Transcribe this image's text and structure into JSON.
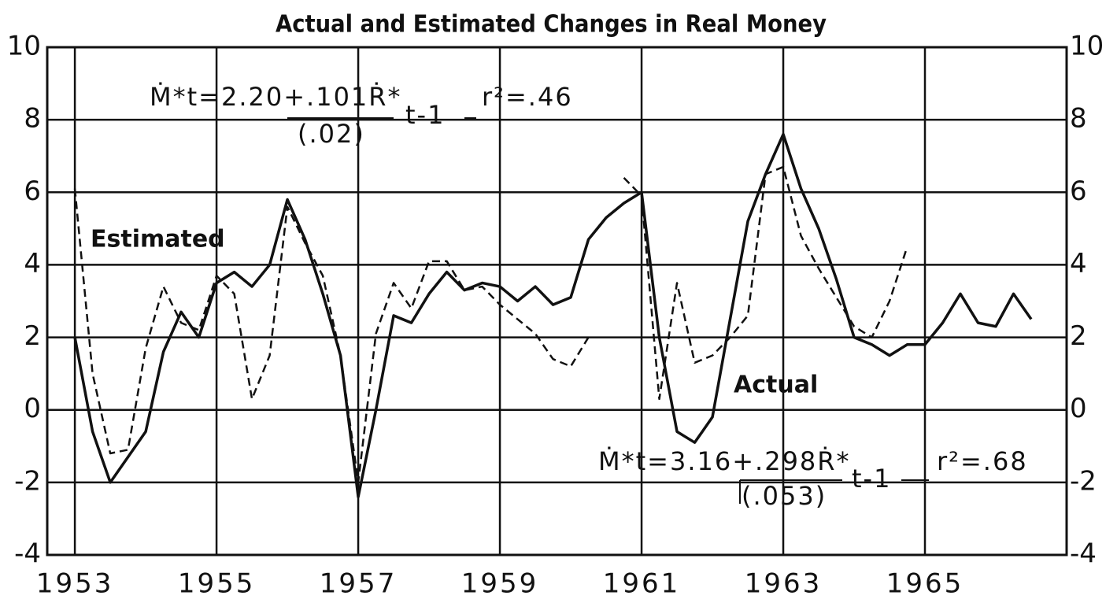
{
  "chart_data": {
    "type": "line",
    "title": "Actual and Estimated Changes in Real Money",
    "x": [
      1953,
      1953.25,
      1953.5,
      1953.75,
      1954,
      1954.25,
      1954.5,
      1954.75,
      1955,
      1955.25,
      1955.5,
      1955.75,
      1956,
      1956.25,
      1956.5,
      1956.75,
      1957,
      1957.25,
      1957.5,
      1957.75,
      1958,
      1958.25,
      1958.5,
      1958.75,
      1959,
      1959.25,
      1959.5,
      1959.75,
      1960,
      1960.25,
      1960.5,
      1960.75,
      1961,
      1961.25,
      1961.5,
      1961.75,
      1962,
      1962.25,
      1962.5,
      1962.75,
      1963,
      1963.25,
      1963.5,
      1963.75,
      1964,
      1964.25,
      1964.5,
      1964.75,
      1965,
      1965.25,
      1965.5,
      1965.75,
      1966,
      1966.25,
      1966.5
    ],
    "series": [
      {
        "name": "Actual",
        "color": "#111111",
        "dashed": false,
        "values": [
          2.0,
          -0.6,
          -2.0,
          -1.3,
          -0.6,
          1.6,
          2.7,
          2.0,
          3.5,
          3.8,
          3.4,
          4.0,
          5.8,
          4.7,
          3.2,
          1.5,
          -2.4,
          0.0,
          2.6,
          2.4,
          3.2,
          3.8,
          3.3,
          3.5,
          3.4,
          3.0,
          3.4,
          2.9,
          3.1,
          4.7,
          5.3,
          5.7,
          6.0,
          2.0,
          -0.6,
          -0.9,
          -0.2,
          2.5,
          5.2,
          6.5,
          7.6,
          6.1,
          5.0,
          3.6,
          2.0,
          1.8,
          1.5,
          1.8,
          1.8,
          2.4,
          3.2,
          2.4,
          2.3,
          3.2,
          2.5
        ]
      },
      {
        "name": "Estimated",
        "color": "#111111",
        "dashed": true,
        "values": [
          6.1,
          1.0,
          -1.2,
          -1.1,
          1.7,
          3.4,
          2.4,
          2.2,
          3.7,
          3.2,
          0.3,
          1.5,
          5.6,
          4.6,
          3.7,
          1.5,
          -2.0,
          2.1,
          3.5,
          2.8,
          4.1,
          4.1,
          3.3,
          3.4,
          2.9,
          2.5,
          2.1,
          1.4,
          1.2,
          2.0,
          null,
          6.4,
          5.9,
          0.3,
          3.5,
          1.3,
          1.5,
          2.0,
          2.6,
          6.5,
          6.7,
          4.8,
          3.9,
          3.1,
          2.3,
          2.0,
          3.0,
          4.5,
          null,
          null,
          null,
          null,
          null,
          null,
          null
        ]
      }
    ],
    "annotations": [
      "Ṁ*t=2.20+.101Ṙ*",
      "(.02)",
      "t-1",
      "r²=.46",
      "Ṁ*t=3.16+.298Ṙ*",
      "(.053)",
      "t-1",
      "r²=.68"
    ],
    "xlim": [
      1952.61,
      1967.0
    ],
    "xticks": [
      1953,
      1955,
      1957,
      1959,
      1961,
      1963,
      1965
    ],
    "ylim": [
      -4,
      10
    ],
    "yticks": [
      -4,
      -2,
      0,
      2,
      4,
      6,
      8,
      10
    ],
    "y2lim": [
      -4,
      10
    ],
    "y2ticks": [
      -4,
      -2,
      0,
      2,
      4,
      6,
      8,
      10
    ],
    "grid": true
  }
}
